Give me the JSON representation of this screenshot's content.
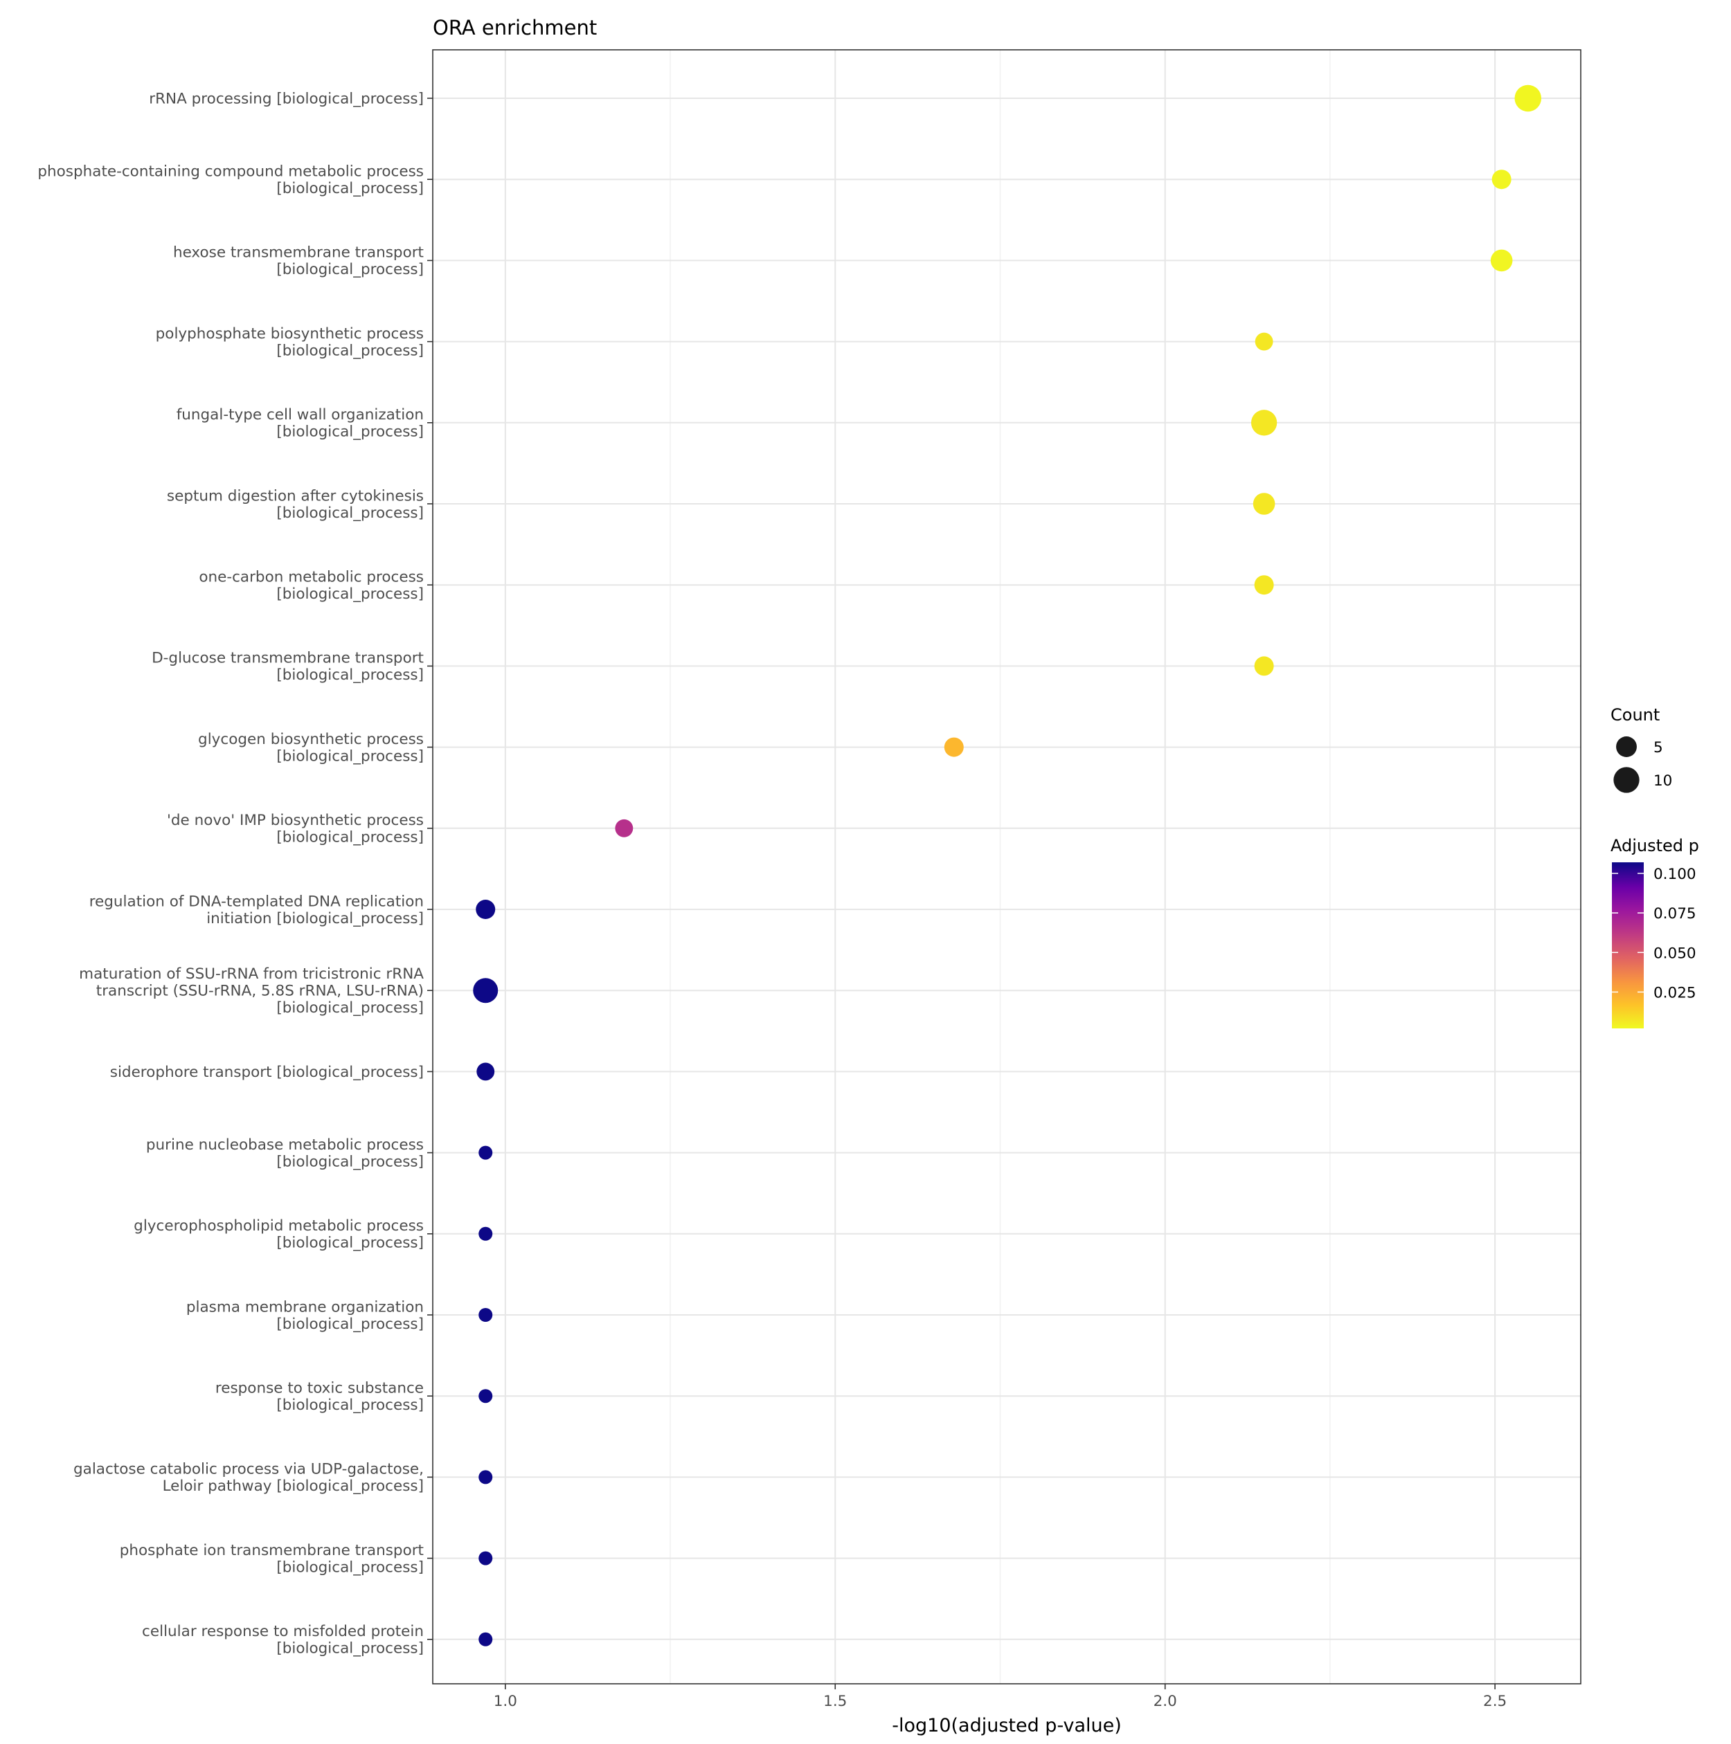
{
  "chart_data": {
    "type": "scatter",
    "title": "ORA enrichment",
    "xlabel": "-log10(adjusted p-value)",
    "ylabel": "",
    "xlim": [
      0.89,
      2.63
    ],
    "x_ticks": [
      "1.0",
      "1.5",
      "2.0",
      "2.5"
    ],
    "x_tick_values": [
      1.0,
      1.5,
      2.0,
      2.5
    ],
    "grid": true,
    "legend_position": "right",
    "size_legend": {
      "title": "Count",
      "entries": [
        {
          "label": "5",
          "count": 5
        },
        {
          "label": "10",
          "count": 10
        }
      ]
    },
    "color_legend": {
      "title": "Adjusted p",
      "colormap": "plasma",
      "range": [
        0.002,
        0.107
      ],
      "ticks": [
        "0.100",
        "0.075",
        "0.050",
        "0.025"
      ],
      "tick_values": [
        0.1,
        0.075,
        0.05,
        0.025
      ]
    },
    "terms": [
      {
        "label": [
          "rRNA processing [biological_process]"
        ],
        "x": 2.55,
        "count": 11,
        "padj": 0.0028
      },
      {
        "label": [
          "phosphate-containing compound metabolic process",
          "[biological_process]"
        ],
        "x": 2.51,
        "count": 4,
        "padj": 0.0031
      },
      {
        "label": [
          "hexose transmembrane transport",
          "[biological_process]"
        ],
        "x": 2.51,
        "count": 6,
        "padj": 0.0031
      },
      {
        "label": [
          "polyphosphate biosynthetic process",
          "[biological_process]"
        ],
        "x": 2.15,
        "count": 3,
        "padj": 0.0071
      },
      {
        "label": [
          "fungal-type cell wall organization",
          "[biological_process]"
        ],
        "x": 2.15,
        "count": 10,
        "padj": 0.0071
      },
      {
        "label": [
          "septum digestion after cytokinesis",
          "[biological_process]"
        ],
        "x": 2.15,
        "count": 6,
        "padj": 0.0071
      },
      {
        "label": [
          "one-carbon metabolic process",
          "[biological_process]"
        ],
        "x": 2.15,
        "count": 4,
        "padj": 0.0071
      },
      {
        "label": [
          "D-glucose transmembrane transport",
          "[biological_process]"
        ],
        "x": 2.15,
        "count": 4,
        "padj": 0.0071
      },
      {
        "label": [
          "glycogen biosynthetic process",
          "[biological_process]"
        ],
        "x": 1.68,
        "count": 4,
        "padj": 0.021
      },
      {
        "label": [
          "'de novo' IMP biosynthetic process",
          "[biological_process]"
        ],
        "x": 1.18,
        "count": 3,
        "padj": 0.066
      },
      {
        "label": [
          "regulation of DNA-templated DNA replication",
          "initiation [biological_process]"
        ],
        "x": 0.97,
        "count": 4,
        "padj": 0.107
      },
      {
        "label": [
          "maturation of SSU-rRNA from tricistronic rRNA",
          "transcript (SSU-rRNA, 5.8S rRNA, LSU-rRNA)",
          "[biological_process]"
        ],
        "x": 0.97,
        "count": 9,
        "padj": 0.107
      },
      {
        "label": [
          "siderophore transport [biological_process]"
        ],
        "x": 0.97,
        "count": 3,
        "padj": 0.107
      },
      {
        "label": [
          "purine nucleobase metabolic process",
          "[biological_process]"
        ],
        "x": 0.97,
        "count": 1,
        "padj": 0.107
      },
      {
        "label": [
          "glycerophospholipid metabolic process",
          "[biological_process]"
        ],
        "x": 0.97,
        "count": 1,
        "padj": 0.107
      },
      {
        "label": [
          "plasma membrane organization",
          "[biological_process]"
        ],
        "x": 0.97,
        "count": 1,
        "padj": 0.107
      },
      {
        "label": [
          "response to toxic substance",
          "[biological_process]"
        ],
        "x": 0.97,
        "count": 1,
        "padj": 0.107
      },
      {
        "label": [
          "galactose catabolic process via UDP-galactose,",
          "Leloir pathway [biological_process]"
        ],
        "x": 0.97,
        "count": 1,
        "padj": 0.107
      },
      {
        "label": [
          "phosphate ion transmembrane transport",
          "[biological_process]"
        ],
        "x": 0.97,
        "count": 1,
        "padj": 0.107
      },
      {
        "label": [
          "cellular response to misfolded protein",
          "[biological_process]"
        ],
        "x": 0.97,
        "count": 1,
        "padj": 0.107
      }
    ]
  }
}
